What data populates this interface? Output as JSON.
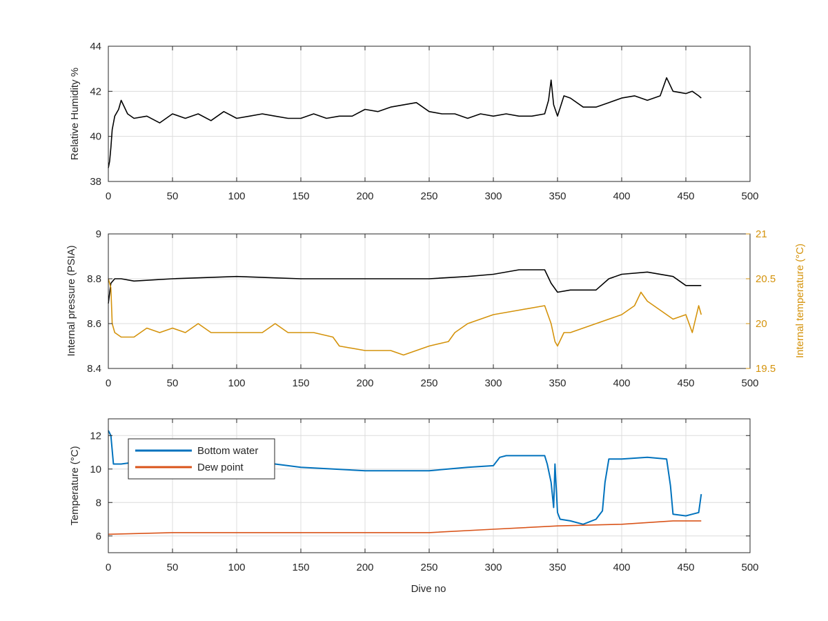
{
  "chart_data": [
    {
      "type": "line",
      "xlabel": "",
      "ylabel": "Relative Humidity %",
      "xlim": [
        0,
        500
      ],
      "ylim": [
        38,
        44
      ],
      "xticks": [
        0,
        50,
        100,
        150,
        200,
        250,
        300,
        350,
        400,
        450,
        500
      ],
      "yticks": [
        38,
        40,
        42,
        44
      ],
      "grid": true,
      "series": [
        {
          "axis": "left",
          "color": "#000000",
          "x": [
            0,
            1,
            2,
            3,
            5,
            8,
            10,
            15,
            20,
            30,
            40,
            50,
            60,
            70,
            80,
            90,
            100,
            110,
            120,
            130,
            140,
            150,
            160,
            170,
            180,
            190,
            200,
            210,
            220,
            230,
            240,
            250,
            260,
            270,
            280,
            290,
            300,
            310,
            320,
            330,
            340,
            343,
            345,
            347,
            350,
            355,
            360,
            370,
            380,
            390,
            400,
            410,
            420,
            430,
            435,
            440,
            450,
            455,
            460,
            462
          ],
          "y": [
            38.6,
            38.9,
            39.5,
            40.3,
            40.9,
            41.2,
            41.6,
            41.0,
            40.8,
            40.9,
            40.6,
            41.0,
            40.8,
            41.0,
            40.7,
            41.1,
            40.8,
            40.9,
            41.0,
            40.9,
            40.8,
            40.8,
            41.0,
            40.8,
            40.9,
            40.9,
            41.2,
            41.1,
            41.3,
            41.4,
            41.5,
            41.1,
            41.0,
            41.0,
            40.8,
            41.0,
            40.9,
            41.0,
            40.9,
            40.9,
            41.0,
            41.6,
            42.5,
            41.4,
            40.9,
            41.8,
            41.7,
            41.3,
            41.3,
            41.5,
            41.7,
            41.8,
            41.6,
            41.8,
            42.6,
            42.0,
            41.9,
            42.0,
            41.8,
            41.7
          ]
        }
      ]
    },
    {
      "type": "line",
      "xlabel": "",
      "ylabel": "Internal pressure (PSIA)",
      "ylabel_right": "Internal temperature (°C)",
      "xlim": [
        0,
        500
      ],
      "ylim": [
        8.4,
        9.0
      ],
      "ylim_right": [
        19.5,
        21
      ],
      "xticks": [
        0,
        50,
        100,
        150,
        200,
        250,
        300,
        350,
        400,
        450,
        500
      ],
      "yticks": [
        8.4,
        8.6,
        8.8,
        9
      ],
      "yticks_right": [
        19.5,
        20,
        20.5,
        21
      ],
      "grid": true,
      "series": [
        {
          "axis": "left",
          "color": "#000000",
          "x": [
            0,
            2,
            5,
            10,
            20,
            50,
            100,
            150,
            200,
            250,
            280,
            300,
            320,
            340,
            345,
            350,
            360,
            380,
            390,
            400,
            420,
            440,
            450,
            462
          ],
          "y": [
            8.69,
            8.78,
            8.8,
            8.8,
            8.79,
            8.8,
            8.81,
            8.8,
            8.8,
            8.8,
            8.81,
            8.82,
            8.84,
            8.84,
            8.78,
            8.74,
            8.75,
            8.75,
            8.8,
            8.82,
            8.83,
            8.81,
            8.77,
            8.77
          ]
        },
        {
          "axis": "right",
          "color": "#d4920a",
          "x": [
            0,
            2,
            3,
            5,
            10,
            20,
            30,
            40,
            50,
            60,
            70,
            80,
            100,
            120,
            130,
            140,
            160,
            175,
            180,
            200,
            220,
            230,
            240,
            250,
            265,
            270,
            280,
            290,
            300,
            320,
            340,
            345,
            348,
            350,
            355,
            360,
            380,
            390,
            400,
            410,
            415,
            420,
            430,
            440,
            450,
            455,
            460,
            462
          ],
          "y": [
            20.5,
            20.4,
            20.0,
            19.9,
            19.85,
            19.85,
            19.95,
            19.9,
            19.95,
            19.9,
            20.0,
            19.9,
            19.9,
            19.9,
            20.0,
            19.9,
            19.9,
            19.85,
            19.75,
            19.7,
            19.7,
            19.65,
            19.7,
            19.75,
            19.8,
            19.9,
            20.0,
            20.05,
            20.1,
            20.15,
            20.2,
            20.0,
            19.8,
            19.75,
            19.9,
            19.9,
            20.0,
            20.05,
            20.1,
            20.2,
            20.35,
            20.25,
            20.15,
            20.05,
            20.1,
            19.9,
            20.2,
            20.1
          ]
        }
      ]
    },
    {
      "type": "line",
      "xlabel": "Dive no",
      "ylabel": "Temperature (°C)",
      "xlim": [
        0,
        500
      ],
      "ylim": [
        5,
        13
      ],
      "xticks": [
        0,
        50,
        100,
        150,
        200,
        250,
        300,
        350,
        400,
        450,
        500
      ],
      "yticks": [
        6,
        8,
        10,
        12
      ],
      "grid": true,
      "legend": "top-left",
      "series": [
        {
          "name": "Bottom water",
          "axis": "left",
          "color": "#0072bd",
          "x": [
            0,
            2,
            4,
            10,
            20,
            50,
            100,
            130,
            150,
            200,
            250,
            280,
            300,
            305,
            310,
            320,
            340,
            342,
            345,
            347,
            348,
            350,
            352,
            360,
            370,
            380,
            385,
            387,
            390,
            400,
            420,
            435,
            438,
            440,
            450,
            455,
            460,
            462
          ],
          "y": [
            12.3,
            12.0,
            10.3,
            10.3,
            10.4,
            10.5,
            10.4,
            10.3,
            10.1,
            9.9,
            9.9,
            10.1,
            10.2,
            10.7,
            10.8,
            10.8,
            10.8,
            10.3,
            9.2,
            7.7,
            10.3,
            7.4,
            7.0,
            6.9,
            6.7,
            7.0,
            7.5,
            9.2,
            10.6,
            10.6,
            10.7,
            10.6,
            9.0,
            7.3,
            7.2,
            7.3,
            7.4,
            8.5
          ]
        },
        {
          "name": "Dew point",
          "axis": "left",
          "color": "#d95319",
          "x": [
            0,
            50,
            100,
            150,
            200,
            250,
            300,
            350,
            400,
            440,
            462
          ],
          "y": [
            6.1,
            6.2,
            6.2,
            6.2,
            6.2,
            6.2,
            6.4,
            6.6,
            6.7,
            6.9,
            6.9
          ]
        }
      ]
    }
  ]
}
